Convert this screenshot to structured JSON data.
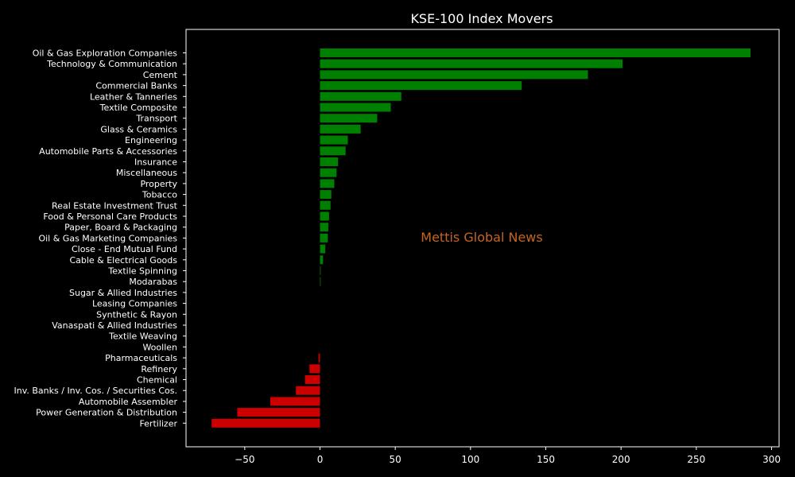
{
  "chart_data": {
    "type": "bar",
    "orientation": "horizontal",
    "title": "KSE-100 Index Movers",
    "watermark": "Mettis Global News",
    "xlim": [
      -89,
      305
    ],
    "xticks": [
      -50,
      0,
      50,
      100,
      150,
      200,
      250,
      300
    ],
    "xtick_labels": [
      "−50",
      "0",
      "50",
      "100",
      "150",
      "200",
      "250",
      "300"
    ],
    "grid": false,
    "colors": {
      "positive": "#008000",
      "negative": "#cc0000",
      "background": "#000000",
      "text": "#ffffff",
      "watermark": "#c8641e"
    },
    "categories": [
      "Oil & Gas Exploration Companies",
      "Technology & Communication",
      "Cement",
      "Commercial Banks",
      "Leather & Tanneries",
      "Textile Composite",
      "Transport",
      "Glass & Ceramics",
      "Engineering",
      "Automobile Parts & Accessories",
      "Insurance",
      "Miscellaneous",
      "Property",
      "Tobacco",
      "Real Estate Investment Trust",
      "Food & Personal Care Products",
      "Paper, Board & Packaging",
      "Oil & Gas Marketing Companies",
      "Close - End Mutual Fund",
      "Cable & Electrical Goods",
      "Textile Spinning",
      "Modarabas",
      "Sugar & Allied Industries",
      "Leasing Companies",
      "Synthetic & Rayon",
      "Vanaspati & Allied Industries",
      "Textile Weaving",
      "Woollen",
      "Pharmaceuticals",
      "Refinery",
      "Chemical",
      "Inv. Banks / Inv. Cos. / Securities Cos.",
      "Automobile Assembler",
      "Power Generation & Distribution",
      "Fertilizer"
    ],
    "values": [
      286,
      201,
      178,
      134,
      54,
      47,
      38,
      27,
      18.5,
      17,
      12,
      11,
      9.5,
      7.5,
      7,
      6,
      5.5,
      5.2,
      3.5,
      2,
      0.4,
      0.4,
      0,
      0,
      0,
      0,
      0,
      0,
      -1,
      -7,
      -10,
      -16,
      -33,
      -55,
      -72
    ]
  }
}
